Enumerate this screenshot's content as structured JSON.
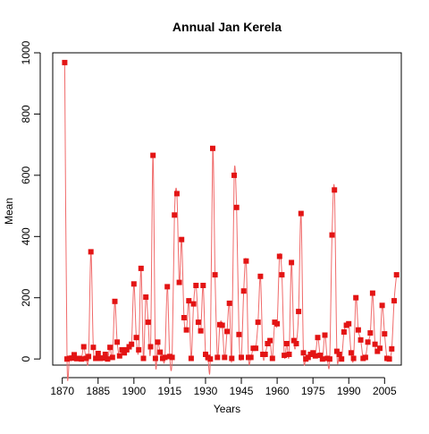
{
  "chart_data": {
    "type": "line",
    "title": "Annual Jan Kerela",
    "xlabel": "Years",
    "ylabel": "Mean",
    "xlim": [
      1866,
      2012
    ],
    "ylim": [
      -20,
      1000
    ],
    "x_ticks": [
      1870,
      1885,
      1900,
      1915,
      1930,
      1945,
      1960,
      1975,
      1990,
      2005
    ],
    "y_ticks": [
      0,
      200,
      400,
      600,
      800,
      1000
    ],
    "grid": false,
    "legend": "none",
    "colors": {
      "line": "#f06a6a",
      "marker": "#e31414",
      "axis": "#000000"
    },
    "series": [
      {
        "x": [
          1871,
          1872,
          1873,
          1874,
          1875,
          1876,
          1877,
          1878,
          1879,
          1880,
          1881,
          1882,
          1883,
          1884,
          1885,
          1886,
          1887,
          1888,
          1889,
          1890,
          1891,
          1892,
          1893,
          1894,
          1895,
          1896,
          1897,
          1898,
          1899,
          1900,
          1901,
          1902,
          1903,
          1904,
          1905,
          1906,
          1907,
          1908,
          1909,
          1910,
          1911,
          1912,
          1913,
          1914,
          1915,
          1916,
          1917,
          1918,
          1919,
          1920,
          1921,
          1922,
          1923,
          1924,
          1925,
          1926,
          1927,
          1928,
          1929,
          1930,
          1931,
          1932,
          1933,
          1934,
          1935,
          1936,
          1937,
          1938,
          1939,
          1940,
          1941,
          1942,
          1943,
          1944,
          1945,
          1946,
          1947,
          1948,
          1949,
          1950,
          1951,
          1952,
          1953,
          1954,
          1955,
          1956,
          1957,
          1958,
          1959,
          1960,
          1961,
          1962,
          1963,
          1964,
          1965,
          1966,
          1967,
          1968,
          1969,
          1970,
          1971,
          1972,
          1973,
          1974,
          1975,
          1976,
          1977,
          1978,
          1979,
          1980,
          1981,
          1982,
          1983,
          1984,
          1985,
          1986,
          1987,
          1988,
          1989,
          1990,
          1991,
          1992,
          1993,
          1994,
          1995,
          1996,
          1997,
          1998,
          1999,
          2000,
          2001,
          2002,
          2003,
          2004,
          2005,
          2006,
          2007,
          2008,
          2009,
          2010
        ],
        "y": [
          968,
          0,
          2,
          3,
          14,
          1,
          2,
          0,
          40,
          2,
          8,
          350,
          38,
          2,
          18,
          2,
          3,
          15,
          0,
          38,
          5,
          188,
          55,
          10,
          30,
          20,
          30,
          40,
          48,
          245,
          70,
          30,
          296,
          2,
          202,
          120,
          40,
          665,
          2,
          55,
          22,
          2,
          5,
          236,
          8,
          5,
          470,
          540,
          250,
          390,
          135,
          95,
          190,
          2,
          180,
          240,
          120,
          92,
          240,
          15,
          5,
          0,
          688,
          275,
          5,
          112,
          110,
          5,
          90,
          182,
          2,
          600,
          495,
          80,
          5,
          222,
          320,
          5,
          5,
          35,
          35,
          120,
          270,
          15,
          15,
          50,
          60,
          2,
          120,
          115,
          335,
          275,
          12,
          50,
          15,
          315,
          60,
          50,
          155,
          475,
          20,
          0,
          5,
          15,
          20,
          10,
          70,
          12,
          0,
          78,
          2,
          0,
          405,
          552,
          25,
          15,
          0,
          88,
          110,
          115,
          20,
          2,
          200,
          95,
          62,
          2,
          5,
          55,
          85,
          215,
          48,
          25,
          35,
          175,
          82,
          2,
          0,
          33,
          190,
          275
        ]
      }
    ]
  }
}
